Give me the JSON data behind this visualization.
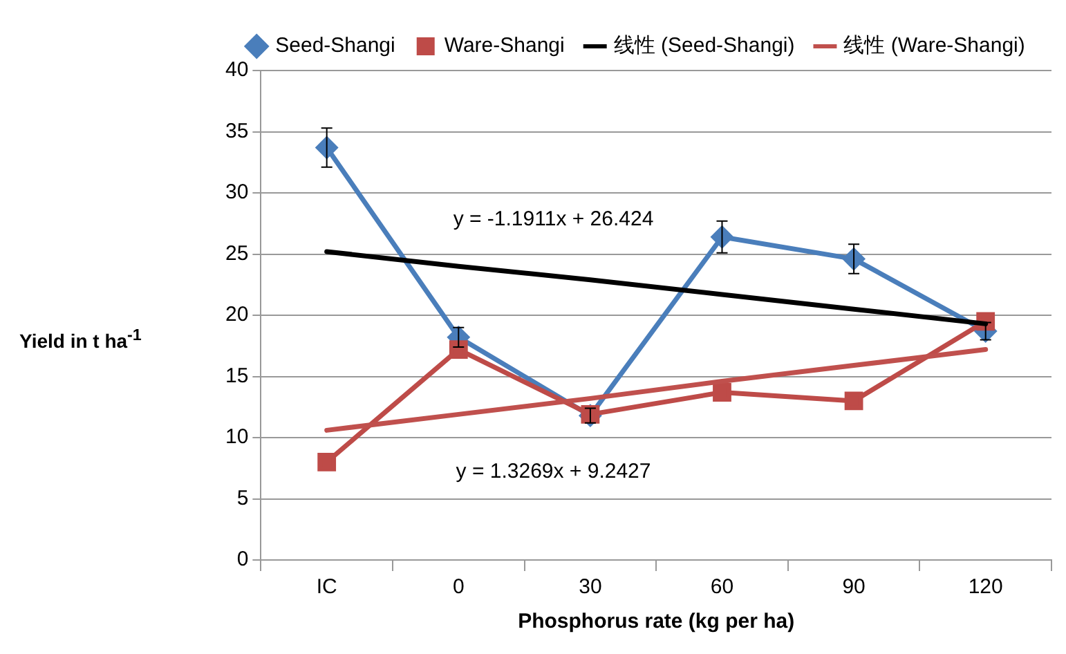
{
  "chart_data": {
    "type": "line",
    "xlabel": "Phosphorus rate (kg per ha)",
    "ylabel": "Yield in t  ha$^{-1}$",
    "categories": [
      "IC",
      "0",
      "30",
      "60",
      "90",
      "120"
    ],
    "series": [
      {
        "name": "Seed-Shangi",
        "color": "#4a7ebb",
        "marker": "diamond",
        "values": [
          33.7,
          18.2,
          11.8,
          26.4,
          24.6,
          18.7
        ],
        "errors": [
          1.6,
          0.8,
          0.6,
          1.3,
          1.2,
          0.7
        ]
      },
      {
        "name": "Ware-Shangi",
        "color": "#be4b48",
        "marker": "square",
        "values": [
          8.0,
          17.2,
          11.9,
          13.7,
          13.0,
          19.5
        ]
      },
      {
        "name": "线性 (Seed-Shangi)",
        "color": "#000000",
        "marker": "none",
        "values": [
          25.2,
          24.0,
          22.9,
          21.7,
          20.5,
          19.3
        ]
      },
      {
        "name": "线性 (Ware-Shangi)",
        "color": "#c0504d",
        "marker": "none",
        "values": [
          10.6,
          11.9,
          13.2,
          14.6,
          15.9,
          17.2
        ]
      }
    ],
    "ylim": [
      0,
      40
    ],
    "yticks": [
      0,
      5,
      10,
      15,
      20,
      25,
      30,
      35,
      40
    ],
    "grid": "y",
    "legend": "top",
    "annotations": [
      "y = -1.1911x + 26.424",
      "y = 1.3269x + 9.2427"
    ]
  }
}
